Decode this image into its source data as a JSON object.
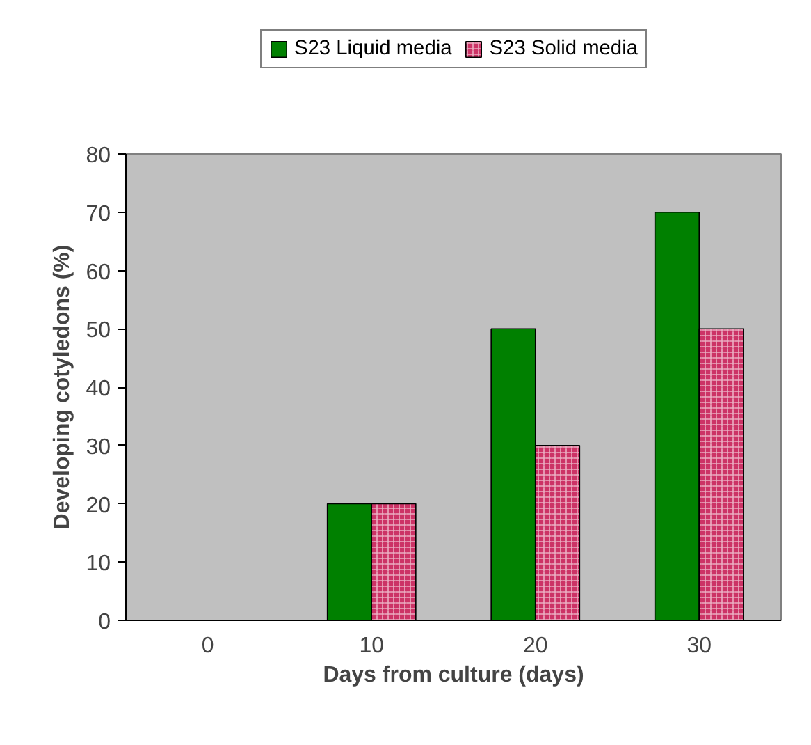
{
  "chart_data": {
    "type": "bar",
    "xlabel": "Days from culture (days)",
    "ylabel": "Developing cotyledons (%)",
    "categories": [
      "0",
      "10",
      "20",
      "30"
    ],
    "series": [
      {
        "name": "S23 Liquid media",
        "color": "#008000",
        "values": [
          0,
          20,
          50,
          70
        ]
      },
      {
        "name": "S23 Solid media",
        "color": "#cc3366",
        "values": [
          0,
          20,
          30,
          50
        ]
      }
    ],
    "ylim": [
      0,
      80
    ],
    "yticks": [
      0,
      10,
      20,
      30,
      40,
      50,
      60,
      70,
      80
    ],
    "grid": false,
    "legend": "top"
  }
}
